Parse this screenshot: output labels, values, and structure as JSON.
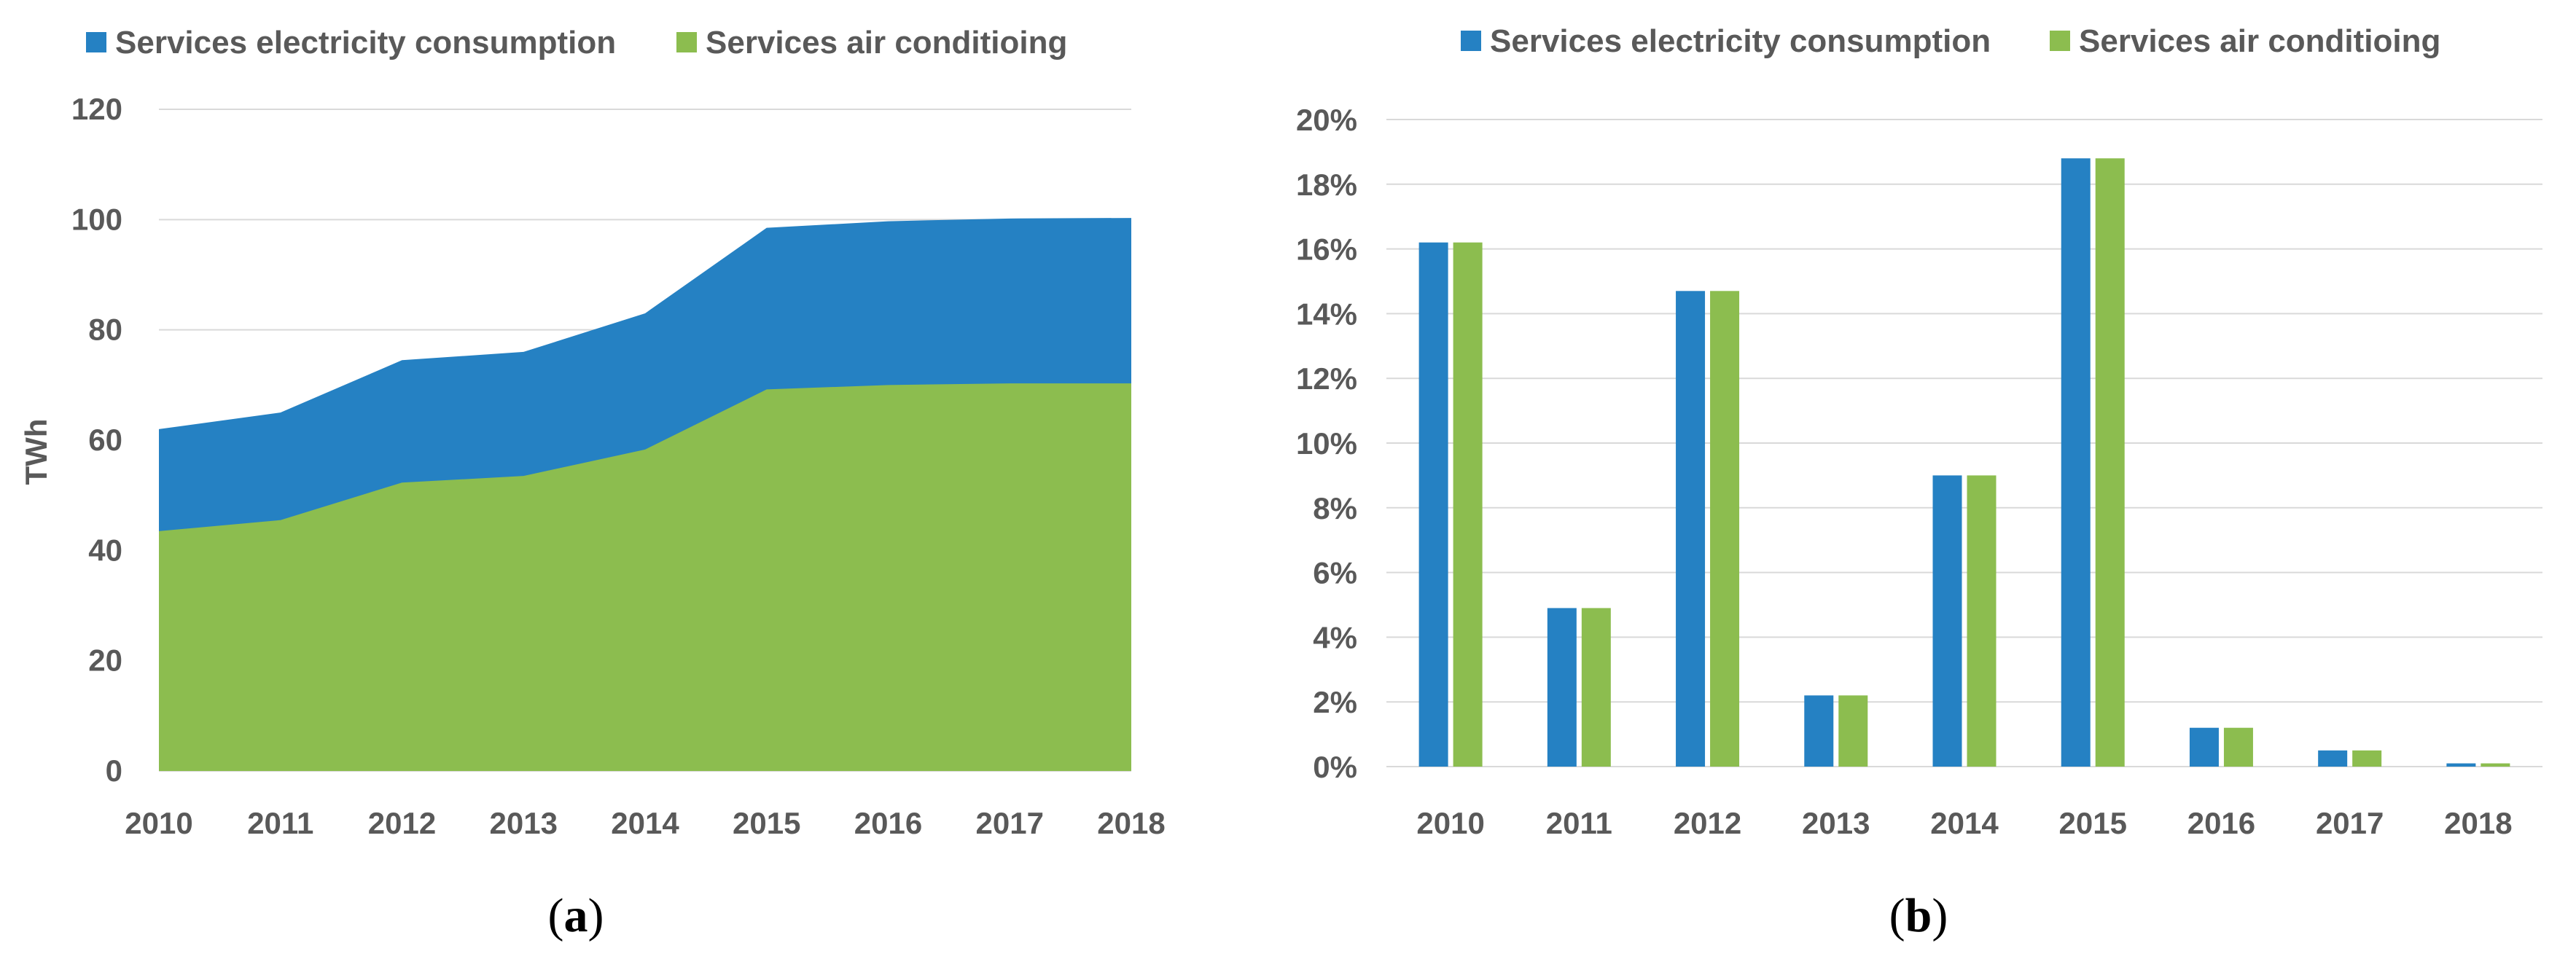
{
  "colors": {
    "electricity": "#2581c3",
    "ac": "#8cbd4f"
  },
  "captions": {
    "a": "a",
    "b": "b"
  },
  "chart_data": [
    {
      "type": "area",
      "series": [
        {
          "name": "Services electricity consumption",
          "values": [
            62,
            65,
            74.5,
            76,
            83,
            98.5,
            99.7,
            100.2,
            100.3
          ]
        },
        {
          "name": "Services air conditioing",
          "values": [
            43.5,
            45.5,
            52.3,
            53.5,
            58.3,
            69.2,
            70,
            70.3,
            70.3
          ]
        }
      ],
      "categories": [
        "2010",
        "2011",
        "2012",
        "2013",
        "2014",
        "2015",
        "2016",
        "2017",
        "2018"
      ],
      "xlabel": "",
      "ylabel": "TWh",
      "ylim": [
        0,
        120
      ],
      "yticks": [
        0,
        20,
        40,
        60,
        80,
        100,
        120
      ],
      "ytick_labels": [
        "0",
        "20",
        "40",
        "60",
        "80",
        "100",
        "120"
      ],
      "legend": "top-left",
      "grid": true
    },
    {
      "type": "bar",
      "series": [
        {
          "name": "Services electricity consumption",
          "values": [
            16.2,
            4.9,
            14.7,
            2.2,
            9.0,
            18.8,
            1.2,
            0.5,
            0.1
          ]
        },
        {
          "name": "Services air conditioing",
          "values": [
            16.2,
            4.9,
            14.7,
            2.2,
            9.0,
            18.8,
            1.2,
            0.5,
            0.1
          ]
        }
      ],
      "categories": [
        "2010",
        "2011",
        "2012",
        "2013",
        "2014",
        "2015",
        "2016",
        "2017",
        "2018"
      ],
      "xlabel": "",
      "ylabel": "",
      "ylim": [
        0,
        20
      ],
      "yticks": [
        0,
        2,
        4,
        6,
        8,
        10,
        12,
        14,
        16,
        18,
        20
      ],
      "ytick_labels": [
        "0%",
        "2%",
        "4%",
        "6%",
        "8%",
        "10%",
        "12%",
        "14%",
        "16%",
        "18%",
        "20%"
      ],
      "legend": "top",
      "grid": true
    }
  ]
}
